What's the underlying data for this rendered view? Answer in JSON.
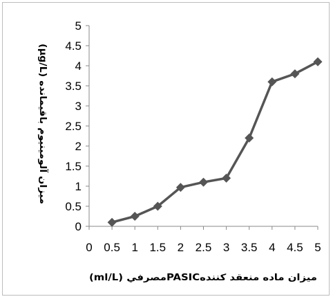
{
  "chart_data": {
    "type": "line",
    "x": [
      0.5,
      1,
      1.5,
      2,
      2.5,
      3,
      3.5,
      4,
      4.5,
      5
    ],
    "series": [
      {
        "values": [
          0.1,
          0.25,
          0.5,
          0.97,
          1.1,
          1.2,
          2.2,
          3.6,
          3.8,
          4.1
        ]
      }
    ],
    "x_ticks": [
      "0",
      "0.5",
      "1",
      "1.5",
      "2",
      "2.5",
      "3",
      "3.5",
      "4",
      "4.5",
      "5"
    ],
    "y_ticks": [
      "0",
      "0.5",
      "1",
      "1.5",
      "2",
      "2.5",
      "3",
      "3.5",
      "4",
      "4.5",
      "5"
    ],
    "xlim": [
      0,
      5
    ],
    "ylim": [
      0,
      5
    ],
    "xlabel": "میزان ماده منعقد کنندهPASICمصرفي (ml/L)",
    "ylabel": "میزان آلومینیوم باقیمانده (μg/L)",
    "grid": false,
    "legend": "none",
    "colors": {
      "line": "#555555",
      "marker": "#555555",
      "axis": "#888888"
    },
    "marker": "diamond-icon"
  }
}
